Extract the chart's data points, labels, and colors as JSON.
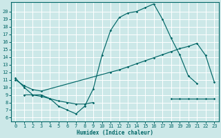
{
  "bg_color": "#cce8e8",
  "grid_color": "#ffffff",
  "line_color": "#006666",
  "xlabel": "Humidex (Indice chaleur)",
  "xlim": [
    -0.5,
    23.5
  ],
  "ylim": [
    5.5,
    21.2
  ],
  "xticks": [
    0,
    1,
    2,
    3,
    4,
    5,
    6,
    7,
    8,
    9,
    10,
    11,
    12,
    13,
    14,
    15,
    16,
    17,
    18,
    19,
    20,
    21,
    22,
    23
  ],
  "yticks": [
    6,
    7,
    8,
    9,
    10,
    11,
    12,
    13,
    14,
    15,
    16,
    17,
    18,
    19,
    20
  ],
  "curve1_x": [
    0,
    1,
    2,
    3,
    4,
    5,
    6,
    7,
    8,
    9,
    10,
    11,
    12,
    13,
    14,
    15,
    16,
    17,
    18,
    19,
    20,
    21
  ],
  "curve1_y": [
    11.2,
    10.0,
    9.0,
    9.0,
    8.5,
    7.5,
    7.0,
    6.5,
    7.5,
    9.8,
    14.2,
    17.5,
    19.2,
    19.8,
    20.0,
    20.5,
    21.0,
    19.0,
    16.5,
    14.3,
    11.5,
    10.5
  ],
  "curve2_x": [
    0,
    1,
    2,
    3,
    11,
    12,
    13,
    14,
    15,
    16,
    17,
    18,
    19,
    20,
    21,
    22,
    23
  ],
  "curve2_y": [
    11.0,
    10.2,
    9.7,
    9.5,
    12.0,
    12.3,
    12.7,
    13.1,
    13.5,
    13.9,
    14.3,
    14.7,
    15.1,
    15.4,
    15.8,
    14.2,
    10.7
  ],
  "curve3a_x": [
    1,
    2,
    3,
    4,
    5,
    6,
    7,
    8,
    9
  ],
  "curve3a_y": [
    9.0,
    9.0,
    8.8,
    8.5,
    8.2,
    8.0,
    7.8,
    7.8,
    8.0
  ],
  "curve3b_x": [
    18,
    19,
    20,
    21,
    22,
    23
  ],
  "curve3b_y": [
    8.5,
    8.5,
    8.5,
    8.5,
    8.5,
    8.5
  ]
}
